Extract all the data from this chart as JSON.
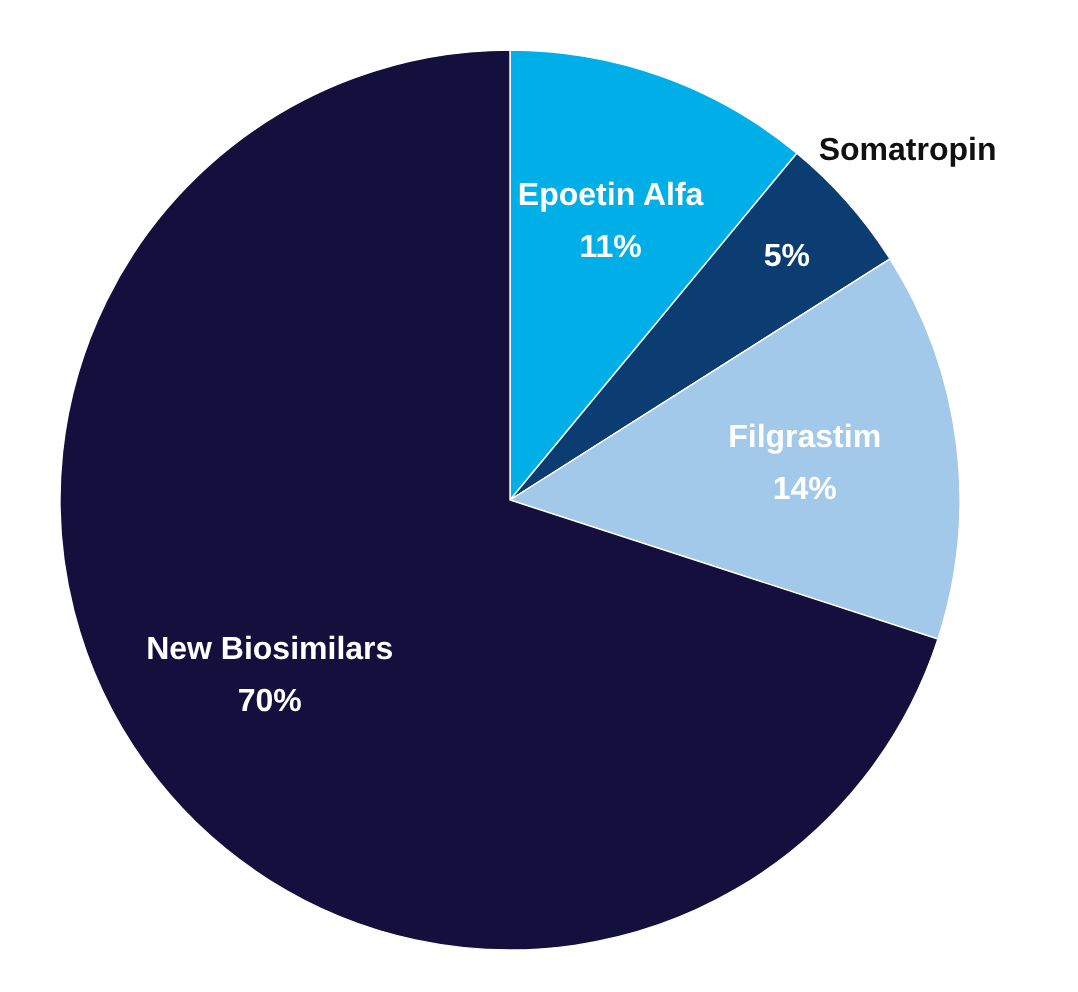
{
  "chart_data": {
    "type": "pie",
    "categories": [
      "Epoetin Alfa",
      "Somatropin",
      "Filgrastim",
      "New Biosimilars"
    ],
    "values": [
      11,
      5,
      14,
      70
    ],
    "value_labels": [
      "11%",
      "5%",
      "14%",
      "70%"
    ],
    "colors": [
      "#00aee8",
      "#0b3c72",
      "#a3c9ea",
      "#140f3d"
    ]
  }
}
